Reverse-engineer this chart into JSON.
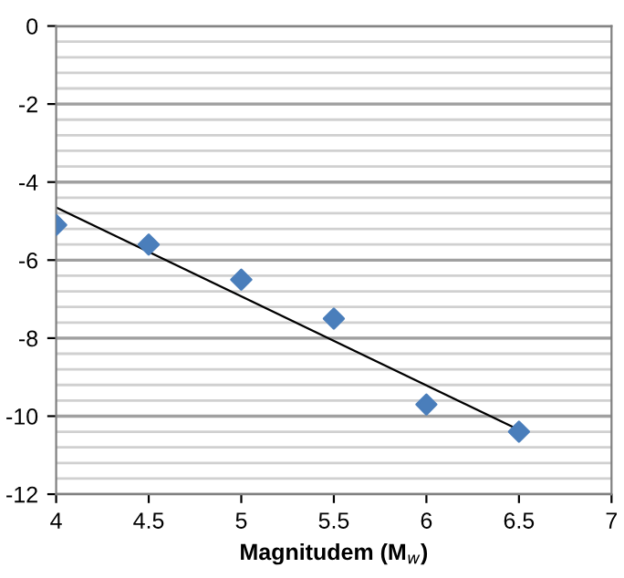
{
  "chart_data": {
    "type": "scatter",
    "xlabel": "Magnitudem (M$_{w}$)",
    "xlim": [
      4,
      7
    ],
    "xticks": [
      4,
      4.5,
      5,
      5.5,
      6,
      6.5,
      7
    ],
    "ylim": [
      -12,
      0
    ],
    "yticks": [
      -12,
      -10,
      -8,
      -6,
      -4,
      -2,
      0
    ],
    "grid": "y",
    "series": [
      {
        "marker": "diamond",
        "color": "#4a7ebb",
        "x": [
          4,
          4.5,
          5,
          5.5,
          6,
          6.5
        ],
        "values": [
          -5.1,
          -5.6,
          -6.5,
          -7.5,
          -9.7,
          -10.4
        ]
      },
      {
        "type": "line",
        "marker": "none",
        "color": "#000000",
        "line_style": "solid",
        "x": [
          4,
          6.5
        ],
        "values": [
          -4.65,
          -10.35
        ]
      }
    ]
  }
}
